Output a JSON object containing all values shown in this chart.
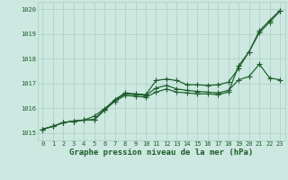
{
  "xlabel": "Graphe pression niveau de la mer (hPa)",
  "ylim": [
    1014.7,
    1020.3
  ],
  "xlim": [
    -0.5,
    23.5
  ],
  "yticks": [
    1015,
    1016,
    1017,
    1018,
    1019,
    1020
  ],
  "xticks": [
    0,
    1,
    2,
    3,
    4,
    5,
    6,
    7,
    8,
    9,
    10,
    11,
    12,
    13,
    14,
    15,
    16,
    17,
    18,
    19,
    20,
    21,
    22,
    23
  ],
  "bg_color": "#cce8e0",
  "grid_color": "#aacfbf",
  "line_color": "#1a5c28",
  "series1": [
    1015.15,
    1015.27,
    1015.42,
    1015.48,
    1015.52,
    1015.55,
    1015.95,
    1016.35,
    1016.62,
    1016.58,
    1016.55,
    1017.12,
    1017.18,
    1017.12,
    1016.95,
    1016.95,
    1016.92,
    1016.95,
    1017.05,
    1017.62,
    1018.28,
    1019.05,
    1019.48,
    1019.92
  ],
  "series2": [
    1015.15,
    1015.27,
    1015.42,
    1015.48,
    1015.52,
    1015.68,
    1015.98,
    1016.32,
    1016.58,
    1016.55,
    1016.52,
    1016.82,
    1016.92,
    1016.78,
    1016.72,
    1016.68,
    1016.65,
    1016.62,
    1016.72,
    1017.15,
    1017.28,
    1017.78,
    1017.22,
    1017.15
  ],
  "series3": [
    1015.15,
    1015.27,
    1015.42,
    1015.48,
    1015.52,
    1015.52,
    1015.92,
    1016.28,
    1016.52,
    1016.48,
    1016.45,
    1016.65,
    1016.78,
    1016.65,
    1016.62,
    1016.58,
    1016.58,
    1016.55,
    1016.65,
    1017.72,
    1018.28,
    1019.12,
    1019.55,
    1019.95
  ],
  "markersize": 2.8,
  "linewidth": 0.85,
  "label_fontsize": 6.5,
  "tick_fontsize": 5.0,
  "fig_width": 3.2,
  "fig_height": 2.0,
  "dpi": 100
}
